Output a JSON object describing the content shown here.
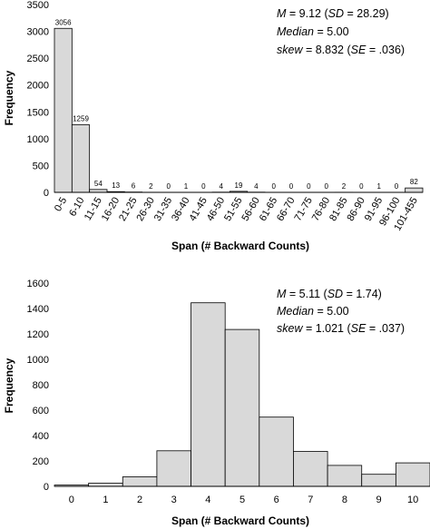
{
  "chart_data": [
    {
      "type": "bar",
      "xlabel": "Span (# Backward Counts)",
      "ylabel": "Frequency",
      "ylim": [
        0,
        3500
      ],
      "yticks": [
        0,
        500,
        1000,
        1500,
        2000,
        2500,
        3000,
        3500
      ],
      "categories": [
        "0-5",
        "6-10",
        "11-15",
        "16-20",
        "21-25",
        "26-30",
        "31-35",
        "36-40",
        "41-45",
        "46-50",
        "51-55",
        "56-60",
        "61-65",
        "66-70",
        "71-75",
        "76-80",
        "81-85",
        "86-90",
        "91-95",
        "96-100",
        "101-455"
      ],
      "values": [
        3056,
        1259,
        54,
        13,
        6,
        2,
        0,
        1,
        0,
        4,
        19,
        4,
        0,
        0,
        0,
        0,
        2,
        0,
        1,
        0,
        82
      ],
      "data_labels": [
        "3056",
        "1259",
        "54",
        "13",
        "6",
        "2",
        "0",
        "1",
        "0",
        "4",
        "19",
        "4",
        "0",
        "0",
        "0",
        "0",
        "2",
        "0",
        "1",
        "0",
        "82"
      ],
      "stats": {
        "mean_label": "M",
        "mean_text": " = 9.12 (",
        "sd_label": "SD",
        "sd_text": " = 28.29)",
        "median_label": "Median",
        "median_text": " = 5.00",
        "skew_label": "skew",
        "skew_text": " = 8.832 (",
        "se_label": "SE",
        "se_text": " = .036)"
      },
      "grid": false
    },
    {
      "type": "bar",
      "xlabel": "Span (# Backward Counts)",
      "ylabel": "Frequency",
      "ylim": [
        0,
        1600
      ],
      "yticks": [
        0,
        200,
        400,
        600,
        800,
        1000,
        1200,
        1400,
        1600
      ],
      "categories": [
        "0",
        "1",
        "2",
        "3",
        "4",
        "5",
        "6",
        "7",
        "8",
        "9",
        "10"
      ],
      "values": [
        10,
        25,
        75,
        280,
        1445,
        1235,
        545,
        275,
        165,
        95,
        185
      ],
      "stats": {
        "mean_label": "M",
        "mean_text": " = 5.11 (",
        "sd_label": "SD",
        "sd_text": " = 1.74)",
        "median_label": "Median",
        "median_text": " = 5.00",
        "skew_label": "skew",
        "skew_text": " = 1.021 (",
        "se_label": "SE",
        "se_text": " = .037)"
      },
      "grid": false
    }
  ]
}
